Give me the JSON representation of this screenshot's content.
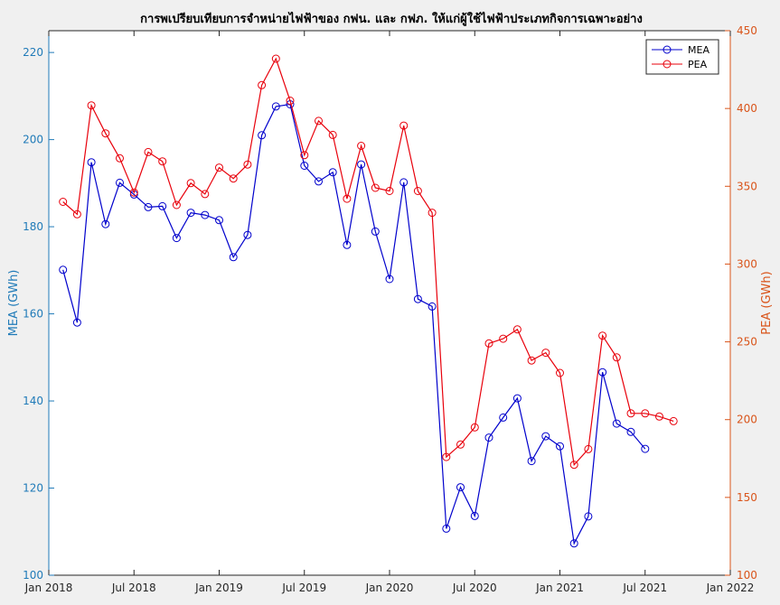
{
  "chart_data": {
    "type": "line",
    "title": "การพเปรียบเทียบการจำหน่ายไฟฟ้าของ กฟน. และ กฟภ. ให้แก่ผู้ใช้ไฟฟ้าประเภทกิจการเฉพาะอย่าง",
    "xlabel": "",
    "x_ticks": [
      "Jan 2018",
      "Jul 2018",
      "Jan 2019",
      "Jul 2019",
      "Jan 2020",
      "Jul 2020",
      "Jan 2021",
      "Jul 2021",
      "Jan 2022"
    ],
    "xlim": [
      "2018-01",
      "2022-01"
    ],
    "y_left": {
      "label": "MEA (GWh)",
      "lim": [
        100,
        225
      ],
      "ticks": [
        100,
        120,
        140,
        160,
        180,
        200,
        220
      ],
      "color": "#1f7ab8"
    },
    "y_right": {
      "label": "PEA (GWh)",
      "lim": [
        100,
        450
      ],
      "ticks": [
        100,
        150,
        200,
        250,
        300,
        350,
        400,
        450
      ],
      "color": "#d9541a"
    },
    "grid": false,
    "legend": "top-right",
    "series": [
      {
        "name": "MEA",
        "axis": "left",
        "color": "#0000cc",
        "x": [
          "2018-02",
          "2018-03",
          "2018-04",
          "2018-05",
          "2018-06",
          "2018-07",
          "2018-08",
          "2018-09",
          "2018-10",
          "2018-11",
          "2018-12",
          "2019-01",
          "2019-02",
          "2019-03",
          "2019-04",
          "2019-05",
          "2019-06",
          "2019-07",
          "2019-08",
          "2019-09",
          "2019-10",
          "2019-11",
          "2019-12",
          "2020-01",
          "2020-02",
          "2020-03",
          "2020-04",
          "2020-05",
          "2020-06",
          "2020-07",
          "2020-08",
          "2020-09",
          "2020-10",
          "2020-11",
          "2020-12",
          "2021-01",
          "2021-02",
          "2021-03",
          "2021-04",
          "2021-05",
          "2021-06",
          "2021-07"
        ],
        "values": [
          170.1,
          158.0,
          194.8,
          180.6,
          190.1,
          187.4,
          184.5,
          184.7,
          177.4,
          183.2,
          182.7,
          181.5,
          173.0,
          178.1,
          201.0,
          207.6,
          208.1,
          194.0,
          190.4,
          192.5,
          175.8,
          194.3,
          178.9,
          168.0,
          190.2,
          163.4,
          161.7,
          110.7,
          120.2,
          113.6,
          131.6,
          136.2,
          140.6,
          126.2,
          131.9,
          129.6,
          107.3,
          113.5,
          146.6,
          134.8,
          132.9,
          129.0
        ]
      },
      {
        "name": "PEA",
        "axis": "right",
        "color": "#e8000b",
        "x": [
          "2018-02",
          "2018-03",
          "2018-04",
          "2018-05",
          "2018-06",
          "2018-07",
          "2018-08",
          "2018-09",
          "2018-10",
          "2018-11",
          "2018-12",
          "2019-01",
          "2019-02",
          "2019-03",
          "2019-04",
          "2019-05",
          "2019-06",
          "2019-07",
          "2019-08",
          "2019-09",
          "2019-10",
          "2019-11",
          "2019-12",
          "2020-01",
          "2020-02",
          "2020-03",
          "2020-04",
          "2020-05",
          "2020-06",
          "2020-07",
          "2020-08",
          "2020-09",
          "2020-10",
          "2020-11",
          "2020-12",
          "2021-01",
          "2021-02",
          "2021-03",
          "2021-04",
          "2021-05",
          "2021-06",
          "2021-07",
          "2021-08",
          "2021-09"
        ],
        "values": [
          340,
          332,
          402,
          384,
          368,
          346,
          372,
          366,
          338,
          352,
          345,
          362,
          355,
          364,
          415,
          432,
          405,
          370,
          392,
          383,
          342,
          376,
          349,
          347,
          389,
          347,
          333,
          176,
          184,
          195,
          249,
          252,
          258,
          238,
          243,
          230,
          171,
          181,
          254,
          240,
          204,
          204,
          202,
          199
        ]
      }
    ]
  }
}
